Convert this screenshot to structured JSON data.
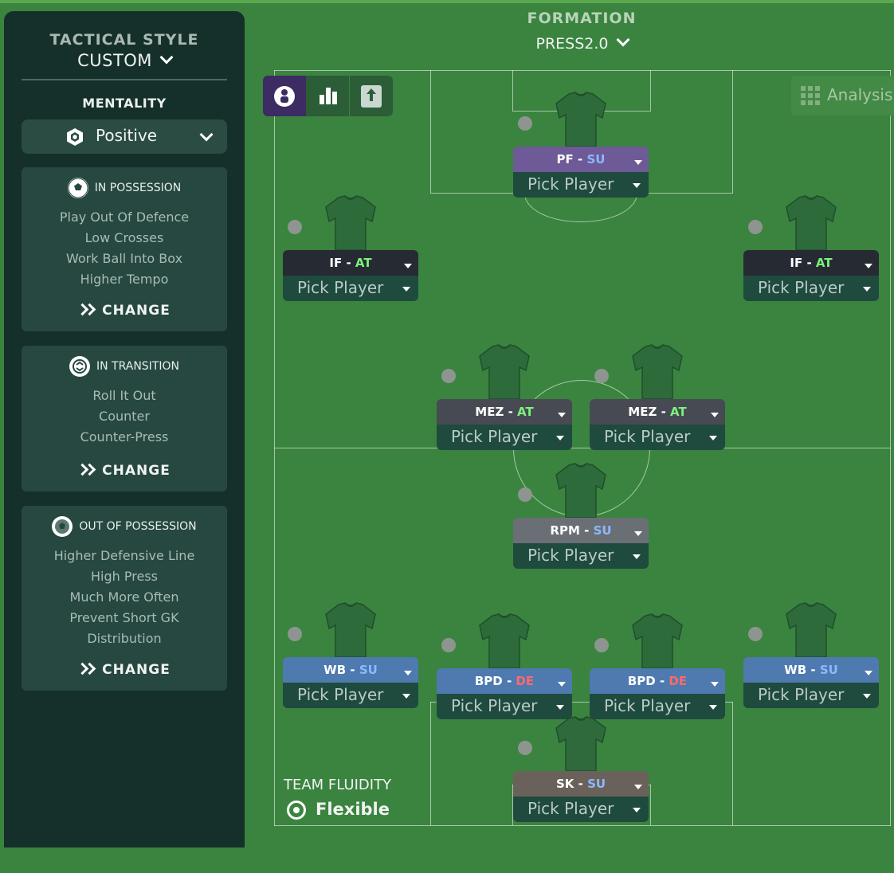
{
  "sidebar": {
    "tactical_style_label": "TACTICAL STYLE",
    "tactical_style_value": "CUSTOM",
    "mentality_label": "MENTALITY",
    "mentality_value": "Positive",
    "in_possession": {
      "title": "IN POSSESSION",
      "items": [
        "Play Out Of Defence",
        "Low Crosses",
        "Work Ball Into Box",
        "Higher Tempo"
      ],
      "change_label": "CHANGE"
    },
    "in_transition": {
      "title": "IN TRANSITION",
      "items": [
        "Roll It Out",
        "Counter",
        "Counter-Press"
      ],
      "change_label": "CHANGE"
    },
    "out_of_possession": {
      "title": "OUT OF POSSESSION",
      "items": [
        "Higher Defensive Line",
        "High Press",
        "Much More Often",
        "Prevent Short GK",
        "Distribution"
      ],
      "change_label": "CHANGE"
    }
  },
  "formation": {
    "label": "FORMATION",
    "value": "PRESS2.0"
  },
  "analysis_label": "Analysis",
  "team_fluidity": {
    "label": "TEAM FLUIDITY",
    "value": "Flexible"
  },
  "colors": {
    "pitch": "#3a843f",
    "sidebar": "#15302a",
    "duty_attack": "#7cf27c",
    "duty_support": "#8db8ff",
    "duty_defend": "#ff6a6a"
  },
  "players": [
    {
      "role": "PF",
      "duty": "SU",
      "pick": "Pick Player",
      "role_color": "#6d5a96"
    },
    {
      "role": "IF",
      "duty": "AT",
      "pick": "Pick Player",
      "role_color": "#262a32"
    },
    {
      "role": "IF",
      "duty": "AT",
      "pick": "Pick Player",
      "role_color": "#262a32"
    },
    {
      "role": "MEZ",
      "duty": "AT",
      "pick": "Pick Player",
      "role_color": "#474a52"
    },
    {
      "role": "MEZ",
      "duty": "AT",
      "pick": "Pick Player",
      "role_color": "#474a52"
    },
    {
      "role": "RPM",
      "duty": "SU",
      "pick": "Pick Player",
      "role_color": "#6a6f76"
    },
    {
      "role": "WB",
      "duty": "SU",
      "pick": "Pick Player",
      "role_color": "#4e7ab0"
    },
    {
      "role": "BPD",
      "duty": "DE",
      "pick": "Pick Player",
      "role_color": "#4e7ab0"
    },
    {
      "role": "BPD",
      "duty": "DE",
      "pick": "Pick Player",
      "role_color": "#4e7ab0"
    },
    {
      "role": "WB",
      "duty": "SU",
      "pick": "Pick Player",
      "role_color": "#4e7ab0"
    },
    {
      "role": "SK",
      "duty": "SU",
      "pick": "Pick Player",
      "role_color": "#6a625a"
    }
  ]
}
